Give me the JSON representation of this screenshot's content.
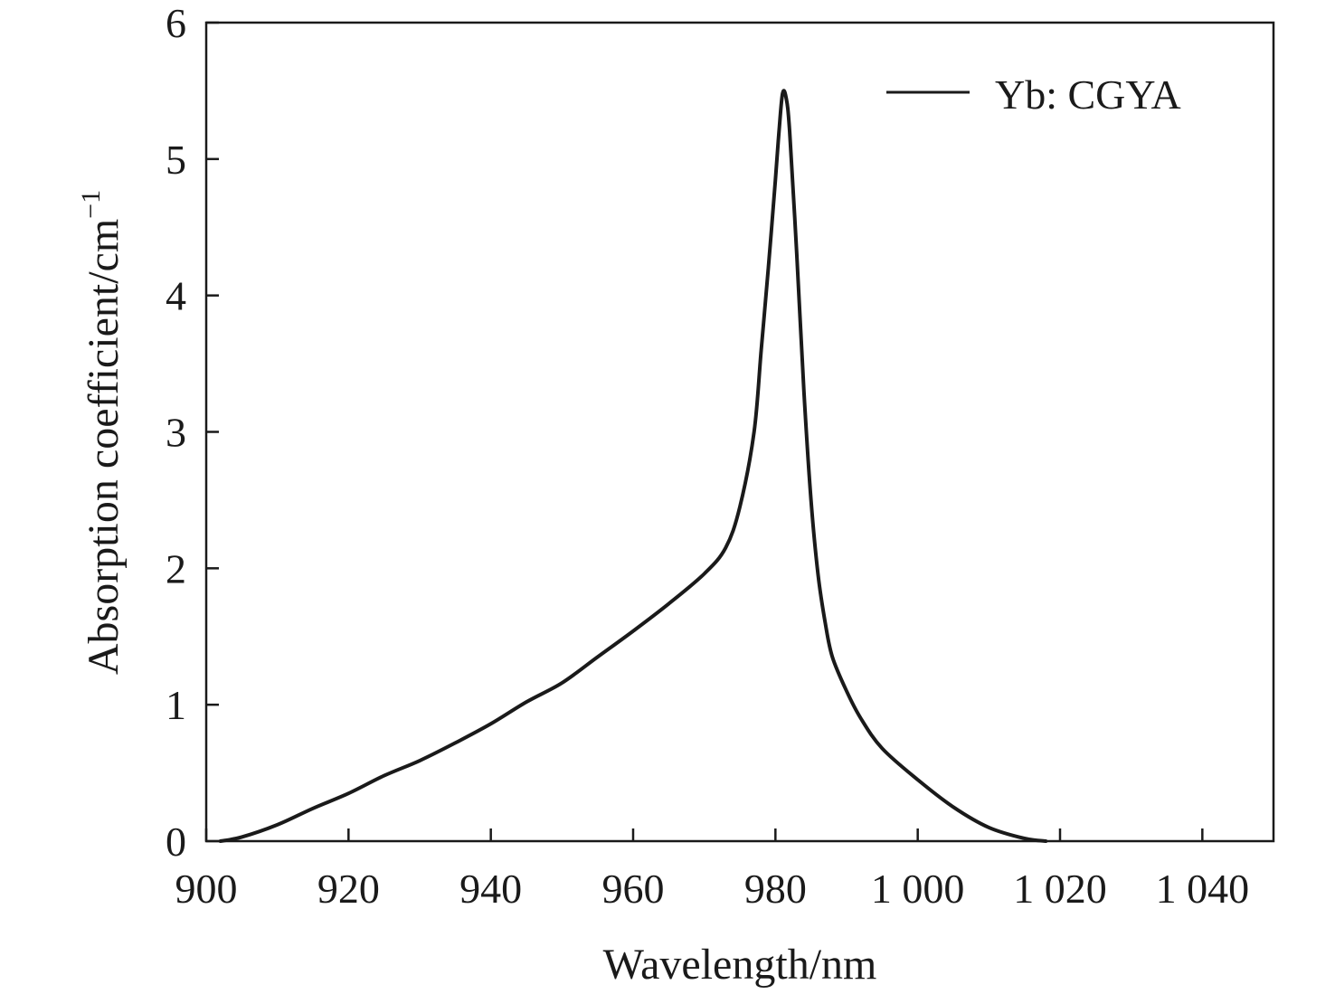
{
  "chart_data": {
    "type": "line",
    "xlabel": "Wavelength/nm",
    "ylabel": "Absorption coefficient/cm",
    "ylabel_superscript": "−1",
    "xlim": [
      900,
      1050
    ],
    "ylim": [
      0,
      6
    ],
    "xticks": [
      900,
      920,
      940,
      960,
      980,
      1000,
      1020,
      1040
    ],
    "xtick_labels": [
      "900",
      "920",
      "940",
      "960",
      "980",
      "1 000",
      "1 020",
      "1 040"
    ],
    "yticks": [
      0,
      1,
      2,
      3,
      4,
      5,
      6
    ],
    "ytick_labels": [
      "0",
      "1",
      "2",
      "3",
      "4",
      "5",
      "6"
    ],
    "grid": false,
    "legend_position": "top-right",
    "series": [
      {
        "name": "Yb: CGYA",
        "color": "#1a1a1a",
        "x": [
          902,
          905,
          910,
          915,
          920,
          925,
          930,
          935,
          940,
          945,
          950,
          955,
          960,
          965,
          970,
          973,
          975,
          977,
          978,
          979,
          980,
          980.5,
          981,
          981.5,
          982,
          983,
          984,
          985,
          986,
          987,
          988,
          990,
          992,
          995,
          1000,
          1005,
          1010,
          1015,
          1018
        ],
        "y": [
          0.0,
          0.03,
          0.12,
          0.24,
          0.35,
          0.48,
          0.59,
          0.72,
          0.86,
          1.02,
          1.16,
          1.35,
          1.54,
          1.74,
          1.96,
          2.15,
          2.45,
          3.0,
          3.6,
          4.2,
          4.85,
          5.2,
          5.48,
          5.45,
          5.2,
          4.3,
          3.3,
          2.5,
          1.95,
          1.6,
          1.35,
          1.1,
          0.9,
          0.68,
          0.45,
          0.25,
          0.1,
          0.02,
          0.0
        ]
      }
    ]
  }
}
